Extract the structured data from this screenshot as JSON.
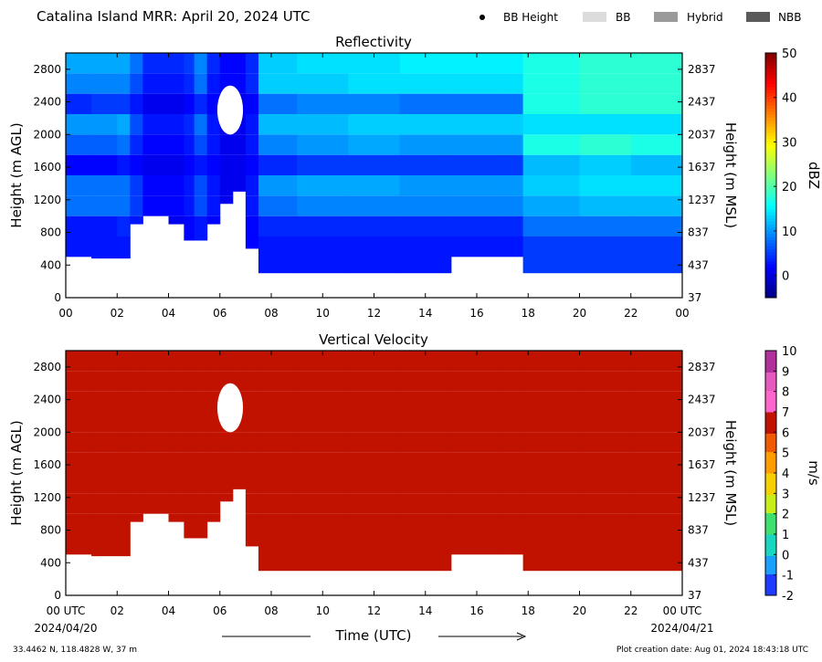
{
  "header": {
    "title": "Catalina Island MRR:  April 20, 2024 UTC",
    "legend": [
      {
        "label": "BB Height",
        "kind": "dot",
        "color": "#000000"
      },
      {
        "label": "BB",
        "kind": "box",
        "color": "#dcdcdc"
      },
      {
        "label": "Hybrid",
        "kind": "box",
        "color": "#9a9a9a"
      },
      {
        "label": "NBB",
        "kind": "box",
        "color": "#5a5a5a"
      }
    ]
  },
  "footer": {
    "location": "33.4462 N, 118.4828 W, 37 m",
    "creation": "Plot creation date: Aug 01, 2024 18:43:18 UTC",
    "xlabel": "Time (UTC)",
    "start_date": "2024/04/20",
    "end_date": "2024/04/21"
  },
  "chart_data": [
    {
      "type": "heatmap",
      "title": "Reflectivity",
      "xlabel": "",
      "ylabel": "Height (m AGL)",
      "ylabel_right": "Height (m MSL)",
      "xlim": [
        0,
        24
      ],
      "ylim": [
        0,
        3000
      ],
      "x_ticks": [
        "00",
        "02",
        "04",
        "06",
        "08",
        "10",
        "12",
        "14",
        "16",
        "18",
        "20",
        "22",
        "00"
      ],
      "y_ticks": [
        0,
        400,
        800,
        1200,
        1600,
        2000,
        2400,
        2800
      ],
      "y_ticks_right": [
        37,
        437,
        837,
        1237,
        1637,
        2037,
        2437,
        2837
      ],
      "colorbar": {
        "label": "dBZ",
        "min": -5,
        "max": 50,
        "ticks": [
          0,
          10,
          20,
          30,
          40,
          50
        ]
      },
      "field": {
        "columns": [
          {
            "x": 0.0,
            "bottom": 500,
            "values": [
              3,
              3,
              8,
              8,
              2,
              7,
              10,
              4,
              9,
              11,
              4
            ]
          },
          {
            "x": 1.0,
            "bottom": 480,
            "values": [
              3,
              3,
              8,
              8,
              2,
              7,
              10,
              5,
              9,
              11,
              5
            ]
          },
          {
            "x": 2.0,
            "bottom": 480,
            "values": [
              3,
              4,
              8,
              8,
              3,
              8,
              11,
              5,
              9,
              11,
              5
            ]
          },
          {
            "x": 2.5,
            "bottom": 900,
            "values": [
              2,
              3,
              5,
              5,
              2,
              4,
              6,
              3,
              6,
              8,
              3
            ]
          },
          {
            "x": 3.0,
            "bottom": 1000,
            "values": [
              1,
              1,
              2,
              2,
              1,
              2,
              3,
              1,
              3,
              4,
              2
            ]
          },
          {
            "x": 4.0,
            "bottom": 900,
            "values": [
              1,
              1,
              2,
              2,
              1,
              2,
              3,
              1,
              3,
              4,
              2
            ]
          },
          {
            "x": 4.6,
            "bottom": 700,
            "values": [
              2,
              2,
              3,
              3,
              2,
              3,
              4,
              2,
              4,
              5,
              3
            ]
          },
          {
            "x": 5.0,
            "bottom": 700,
            "values": [
              3,
              3,
              6,
              6,
              3,
              6,
              8,
              4,
              8,
              9,
              4
            ]
          },
          {
            "x": 5.5,
            "bottom": 900,
            "values": [
              2,
              2,
              3,
              3,
              2,
              3,
              3,
              2,
              3,
              4,
              2
            ]
          },
          {
            "x": 6.0,
            "bottom": 1150,
            "values": [
              1,
              1,
              1,
              1,
              1,
              1,
              1,
              1,
              2,
              2,
              2
            ]
          },
          {
            "x": 6.5,
            "bottom": 1300,
            "values": [
              1,
              1,
              1,
              1,
              1,
              1,
              1,
              1,
              2,
              2,
              2
            ]
          },
          {
            "x": 7.0,
            "bottom": 600,
            "values": [
              2,
              2,
              3,
              3,
              2,
              3,
              3,
              2,
              4,
              4,
              3
            ]
          },
          {
            "x": 7.5,
            "bottom": 300,
            "values": [
              3,
              4,
              8,
              10,
              4,
              9,
              12,
              8,
              13,
              13,
              8
            ]
          },
          {
            "x": 9.0,
            "bottom": 300,
            "values": [
              3,
              4,
              9,
              11,
              5,
              10,
              12,
              9,
              13,
              14,
              9
            ]
          },
          {
            "x": 11.0,
            "bottom": 300,
            "values": [
              3,
              4,
              9,
              11,
              5,
              11,
              13,
              9,
              14,
              14,
              10
            ]
          },
          {
            "x": 13.0,
            "bottom": 300,
            "values": [
              3,
              4,
              9,
              10,
              5,
              10,
              13,
              8,
              14,
              15,
              10
            ]
          },
          {
            "x": 15.0,
            "bottom": 500,
            "values": [
              3,
              4,
              9,
              10,
              5,
              10,
              13,
              8,
              14,
              15,
              10
            ]
          },
          {
            "x": 17.0,
            "bottom": 500,
            "values": [
              3,
              4,
              9,
              10,
              5,
              10,
              13,
              8,
              14,
              15,
              10
            ]
          },
          {
            "x": 17.8,
            "bottom": 300,
            "values": [
              5,
              8,
              11,
              13,
              12,
              17,
              14,
              17,
              17,
              17,
              17
            ]
          },
          {
            "x": 20.0,
            "bottom": 300,
            "values": [
              5,
              8,
              12,
              14,
              13,
              18,
              14,
              18,
              18,
              18,
              18
            ]
          },
          {
            "x": 22.0,
            "bottom": 300,
            "values": [
              5,
              8,
              12,
              14,
              12,
              17,
              14,
              18,
              18,
              18,
              18
            ]
          },
          {
            "x": 24.0,
            "bottom": 300,
            "values": [
              5,
              8,
              12,
              14,
              12,
              17,
              14,
              18,
              18,
              18,
              18
            ]
          }
        ],
        "height_levels": [
          500,
          750,
          1000,
          1250,
          1500,
          1750,
          2000,
          2250,
          2500,
          2750,
          3000
        ],
        "gap": {
          "x_range": [
            5.9,
            6.9
          ],
          "y_range": [
            2000,
            2600
          ]
        }
      }
    },
    {
      "type": "heatmap",
      "title": "Vertical Velocity",
      "xlabel": "Time (UTC)",
      "ylabel": "Height (m AGL)",
      "ylabel_right": "Height (m MSL)",
      "xlim": [
        0,
        24
      ],
      "ylim": [
        0,
        3000
      ],
      "x_ticks": [
        "00 UTC",
        "02",
        "04",
        "06",
        "08",
        "10",
        "12",
        "14",
        "16",
        "18",
        "20",
        "22",
        "00 UTC"
      ],
      "y_ticks": [
        0,
        400,
        800,
        1200,
        1600,
        2000,
        2400,
        2800
      ],
      "y_ticks_right": [
        37,
        437,
        837,
        1237,
        1637,
        2037,
        2437,
        2837
      ],
      "colorbar": {
        "label": "m/s",
        "min": -2,
        "max": 10,
        "ticks": [
          -2,
          -1,
          0,
          1,
          2,
          3,
          4,
          5,
          6,
          7,
          8,
          9,
          10
        ]
      },
      "field": {
        "value": 6.2,
        "color": "#c11200",
        "note": "uniform over echo region; same echo mask as Reflectivity"
      }
    }
  ]
}
